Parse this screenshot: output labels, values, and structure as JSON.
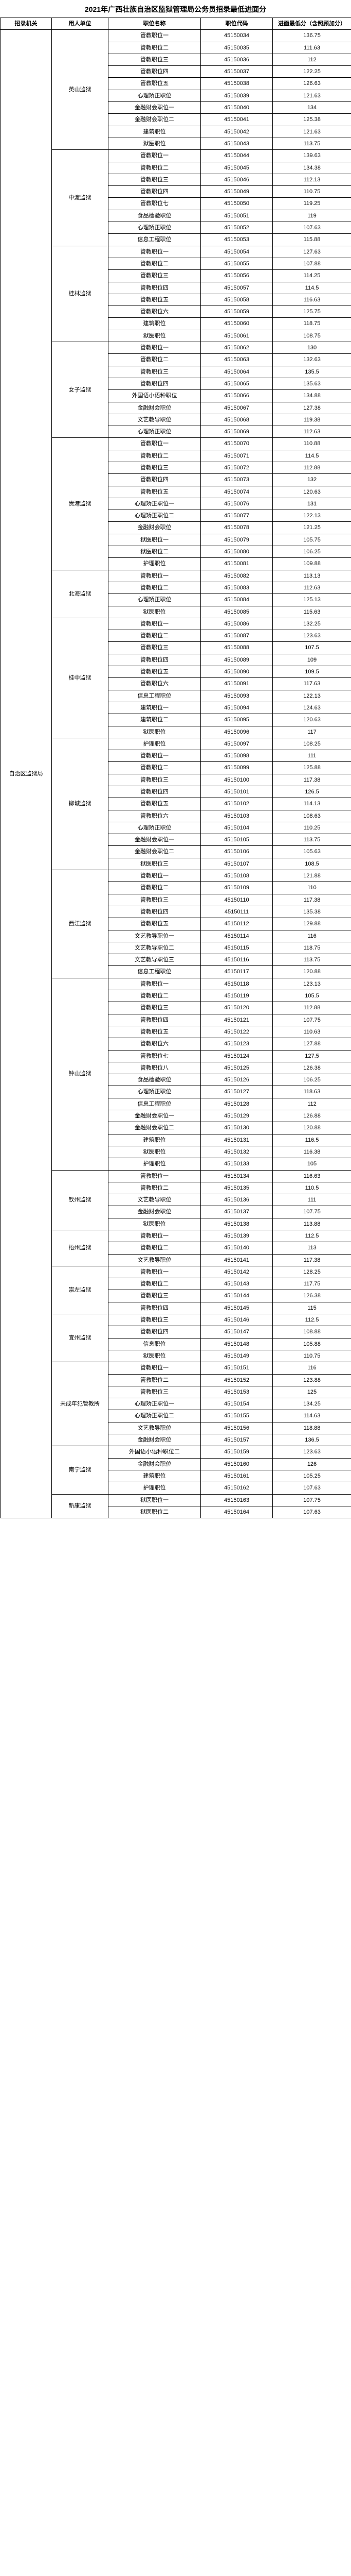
{
  "title": "2021年广西壮族自治区监狱管理局公务员招录最低进面分",
  "headers": [
    "招录机关",
    "用人单位",
    "职位名称",
    "职位代码",
    "进面最低分（含照顾加分）"
  ],
  "org": "自治区监狱局",
  "units": [
    {
      "name": "英山监狱",
      "rows": [
        {
          "pos": "管教职位一",
          "code": "45150034",
          "score": "136.75"
        },
        {
          "pos": "管教职位二",
          "code": "45150035",
          "score": "111.63"
        },
        {
          "pos": "管教职位三",
          "code": "45150036",
          "score": "112"
        },
        {
          "pos": "管教职位四",
          "code": "45150037",
          "score": "122.25"
        },
        {
          "pos": "管教职位五",
          "code": "45150038",
          "score": "126.63"
        },
        {
          "pos": "心理矫正职位",
          "code": "45150039",
          "score": "121.63"
        },
        {
          "pos": "金融财会职位一",
          "code": "45150040",
          "score": "134"
        },
        {
          "pos": "金融财会职位二",
          "code": "45150041",
          "score": "125.38"
        },
        {
          "pos": "建筑职位",
          "code": "45150042",
          "score": "121.63"
        },
        {
          "pos": "狱医职位",
          "code": "45150043",
          "score": "113.75"
        }
      ]
    },
    {
      "name": "中渡监狱",
      "rows": [
        {
          "pos": "管教职位一",
          "code": "45150044",
          "score": "139.63"
        },
        {
          "pos": "管教职位二",
          "code": "45150045",
          "score": "134.38"
        },
        {
          "pos": "管教职位三",
          "code": "45150046",
          "score": "112.13"
        },
        {
          "pos": "管教职位四",
          "code": "45150049",
          "score": "110.75"
        },
        {
          "pos": "管教职位七",
          "code": "45150050",
          "score": "119.25"
        },
        {
          "pos": "食品检验职位",
          "code": "45150051",
          "score": "119"
        },
        {
          "pos": "心理矫正职位",
          "code": "45150052",
          "score": "107.63"
        },
        {
          "pos": "信息工程职位",
          "code": "45150053",
          "score": "115.88"
        }
      ]
    },
    {
      "name": "桂林监狱",
      "rows": [
        {
          "pos": "管教职位一",
          "code": "45150054",
          "score": "127.63"
        },
        {
          "pos": "管教职位二",
          "code": "45150055",
          "score": "107.88"
        },
        {
          "pos": "管教职位三",
          "code": "45150056",
          "score": "114.25"
        },
        {
          "pos": "管教职位四",
          "code": "45150057",
          "score": "114.5"
        },
        {
          "pos": "管教职位五",
          "code": "45150058",
          "score": "116.63"
        },
        {
          "pos": "管教职位六",
          "code": "45150059",
          "score": "125.75"
        },
        {
          "pos": "建筑职位",
          "code": "45150060",
          "score": "118.75"
        },
        {
          "pos": "狱医职位",
          "code": "45150061",
          "score": "108.75"
        }
      ]
    },
    {
      "name": "女子监狱",
      "rows": [
        {
          "pos": "管教职位一",
          "code": "45150062",
          "score": "130"
        },
        {
          "pos": "管教职位二",
          "code": "45150063",
          "score": "132.63"
        },
        {
          "pos": "管教职位三",
          "code": "45150064",
          "score": "135.5"
        },
        {
          "pos": "管教职位四",
          "code": "45150065",
          "score": "135.63"
        },
        {
          "pos": "外国语小语种职位",
          "code": "45150066",
          "score": "134.88"
        },
        {
          "pos": "金融财会职位",
          "code": "45150067",
          "score": "127.38"
        },
        {
          "pos": "文艺教导职位",
          "code": "45150068",
          "score": "119.38"
        },
        {
          "pos": "心理矫正职位",
          "code": "45150069",
          "score": "112.63"
        }
      ]
    },
    {
      "name": "贵港监狱",
      "rows": [
        {
          "pos": "管教职位一",
          "code": "45150070",
          "score": "110.88"
        },
        {
          "pos": "管教职位二",
          "code": "45150071",
          "score": "114.5"
        },
        {
          "pos": "管教职位三",
          "code": "45150072",
          "score": "112.88"
        },
        {
          "pos": "管教职位四",
          "code": "45150073",
          "score": "132"
        },
        {
          "pos": "管教职位五",
          "code": "45150074",
          "score": "120.63"
        },
        {
          "pos": "心理矫正职位一",
          "code": "45150076",
          "score": "131"
        },
        {
          "pos": "心理矫正职位二",
          "code": "45150077",
          "score": "122.13"
        },
        {
          "pos": "金融财会职位",
          "code": "45150078",
          "score": "121.25"
        },
        {
          "pos": "狱医职位一",
          "code": "45150079",
          "score": "105.75"
        },
        {
          "pos": "狱医职位二",
          "code": "45150080",
          "score": "106.25"
        },
        {
          "pos": "护理职位",
          "code": "45150081",
          "score": "109.88"
        }
      ]
    },
    {
      "name": "北海监狱",
      "rows": [
        {
          "pos": "管教职位一",
          "code": "45150082",
          "score": "113.13"
        },
        {
          "pos": "管教职位二",
          "code": "45150083",
          "score": "112.63"
        },
        {
          "pos": "心理矫正职位",
          "code": "45150084",
          "score": "125.13"
        },
        {
          "pos": "狱医职位",
          "code": "45150085",
          "score": "115.63"
        }
      ]
    },
    {
      "name": "桂中监狱",
      "rows": [
        {
          "pos": "管教职位一",
          "code": "45150086",
          "score": "132.25"
        },
        {
          "pos": "管教职位二",
          "code": "45150087",
          "score": "123.63"
        },
        {
          "pos": "管教职位三",
          "code": "45150088",
          "score": "107.5"
        },
        {
          "pos": "管教职位四",
          "code": "45150089",
          "score": "109"
        },
        {
          "pos": "管教职位五",
          "code": "45150090",
          "score": "109.5"
        },
        {
          "pos": "管教职位六",
          "code": "45150091",
          "score": "117.63"
        },
        {
          "pos": "信息工程职位",
          "code": "45150093",
          "score": "122.13"
        },
        {
          "pos": "建筑职位一",
          "code": "45150094",
          "score": "124.63"
        },
        {
          "pos": "建筑职位二",
          "code": "45150095",
          "score": "120.63"
        },
        {
          "pos": "狱医职位",
          "code": "45150096",
          "score": "117"
        }
      ]
    },
    {
      "name": "柳城监狱",
      "rows": [
        {
          "pos": "护理职位",
          "code": "45150097",
          "score": "108.25"
        },
        {
          "pos": "管教职位一",
          "code": "45150098",
          "score": "111"
        },
        {
          "pos": "管教职位二",
          "code": "45150099",
          "score": "125.88"
        },
        {
          "pos": "管教职位三",
          "code": "45150100",
          "score": "117.38"
        },
        {
          "pos": "管教职位四",
          "code": "45150101",
          "score": "126.5"
        },
        {
          "pos": "管教职位五",
          "code": "45150102",
          "score": "114.13"
        },
        {
          "pos": "管教职位六",
          "code": "45150103",
          "score": "108.63"
        },
        {
          "pos": "心理矫正职位",
          "code": "45150104",
          "score": "110.25"
        },
        {
          "pos": "金融财会职位一",
          "code": "45150105",
          "score": "113.75"
        },
        {
          "pos": "金融财会职位二",
          "code": "45150106",
          "score": "105.63"
        },
        {
          "pos": "狱医职位三",
          "code": "45150107",
          "score": "108.5"
        }
      ]
    },
    {
      "name": "西江监狱",
      "rows": [
        {
          "pos": "管教职位一",
          "code": "45150108",
          "score": "121.88"
        },
        {
          "pos": "管教职位二",
          "code": "45150109",
          "score": "110"
        },
        {
          "pos": "管教职位三",
          "code": "45150110",
          "score": "117.38"
        },
        {
          "pos": "管教职位四",
          "code": "45150111",
          "score": "135.38"
        },
        {
          "pos": "管教职位五",
          "code": "45150112",
          "score": "129.88"
        },
        {
          "pos": "文艺教导职位一",
          "code": "45150114",
          "score": "116"
        },
        {
          "pos": "文艺教导职位二",
          "code": "45150115",
          "score": "118.75"
        },
        {
          "pos": "文艺教导职位三",
          "code": "45150116",
          "score": "113.75"
        },
        {
          "pos": "信息工程职位",
          "code": "45150117",
          "score": "120.88"
        }
      ]
    },
    {
      "name": "钟山监狱",
      "rows": [
        {
          "pos": "管教职位一",
          "code": "45150118",
          "score": "123.13"
        },
        {
          "pos": "管教职位二",
          "code": "45150119",
          "score": "105.5"
        },
        {
          "pos": "管教职位三",
          "code": "45150120",
          "score": "112.88"
        },
        {
          "pos": "管教职位四",
          "code": "45150121",
          "score": "107.75"
        },
        {
          "pos": "管教职位五",
          "code": "45150122",
          "score": "110.63"
        },
        {
          "pos": "管教职位六",
          "code": "45150123",
          "score": "127.88"
        },
        {
          "pos": "管教职位七",
          "code": "45150124",
          "score": "127.5"
        },
        {
          "pos": "管教职位八",
          "code": "45150125",
          "score": "126.38"
        },
        {
          "pos": "食品检验职位",
          "code": "45150126",
          "score": "106.25"
        },
        {
          "pos": "心理矫正职位",
          "code": "45150127",
          "score": "118.63"
        },
        {
          "pos": "信息工程职位",
          "code": "45150128",
          "score": "112"
        },
        {
          "pos": "金融财会职位一",
          "code": "45150129",
          "score": "126.88"
        },
        {
          "pos": "金融财会职位二",
          "code": "45150130",
          "score": "120.88"
        },
        {
          "pos": "建筑职位",
          "code": "45150131",
          "score": "116.5"
        },
        {
          "pos": "狱医职位",
          "code": "45150132",
          "score": "116.38"
        },
        {
          "pos": "护理职位",
          "code": "45150133",
          "score": "105"
        }
      ]
    },
    {
      "name": "钦州监狱",
      "rows": [
        {
          "pos": "管教职位一",
          "code": "45150134",
          "score": "116.63"
        },
        {
          "pos": "管教职位二",
          "code": "45150135",
          "score": "110.5"
        },
        {
          "pos": "文艺教导职位",
          "code": "45150136",
          "score": "111"
        },
        {
          "pos": "金融财会职位",
          "code": "45150137",
          "score": "107.75"
        },
        {
          "pos": "狱医职位",
          "code": "45150138",
          "score": "113.88"
        }
      ]
    },
    {
      "name": "梧州监狱",
      "rows": [
        {
          "pos": "管教职位一",
          "code": "45150139",
          "score": "112.5"
        },
        {
          "pos": "管教职位二",
          "code": "45150140",
          "score": "113"
        },
        {
          "pos": "文艺教导职位",
          "code": "45150141",
          "score": "117.38"
        }
      ]
    },
    {
      "name": "崇左监狱",
      "rows": [
        {
          "pos": "管教职位一",
          "code": "45150142",
          "score": "128.25"
        },
        {
          "pos": "管教职位二",
          "code": "45150143",
          "score": "117.75"
        },
        {
          "pos": "管教职位三",
          "code": "45150144",
          "score": "126.38"
        },
        {
          "pos": "管教职位四",
          "code": "45150145",
          "score": "115"
        }
      ]
    },
    {
      "name": "宜州监狱",
      "rows": [
        {
          "pos": "管教职位三",
          "code": "45150146",
          "score": "112.5"
        },
        {
          "pos": "管教职位四",
          "code": "45150147",
          "score": "108.88"
        },
        {
          "pos": "信息职位",
          "code": "45150148",
          "score": "105.88"
        },
        {
          "pos": "狱医职位",
          "code": "45150149",
          "score": "110.75"
        }
      ]
    },
    {
      "name": "未成年犯管教所",
      "rows": [
        {
          "pos": "管教职位一",
          "code": "45150151",
          "score": "116"
        },
        {
          "pos": "管教职位二",
          "code": "45150152",
          "score": "123.88"
        },
        {
          "pos": "管教职位三",
          "code": "45150153",
          "score": "125"
        },
        {
          "pos": "心理矫正职位一",
          "code": "45150154",
          "score": "134.25"
        },
        {
          "pos": "心理矫正职位二",
          "code": "45150155",
          "score": "114.63"
        },
        {
          "pos": "文艺教导职位",
          "code": "45150156",
          "score": "118.88"
        },
        {
          "pos": "金融财会职位",
          "code": "45150157",
          "score": "136.5"
        }
      ]
    },
    {
      "name": "南宁监狱",
      "rows": [
        {
          "pos": "外国语小语种职位二",
          "code": "45150159",
          "score": "123.63"
        },
        {
          "pos": "金融财会职位",
          "code": "45150160",
          "score": "126"
        },
        {
          "pos": "建筑职位",
          "code": "45150161",
          "score": "105.25"
        },
        {
          "pos": "护理职位",
          "code": "45150162",
          "score": "107.63"
        }
      ]
    },
    {
      "name": "新康监狱",
      "rows": [
        {
          "pos": "狱医职位一",
          "code": "45150163",
          "score": "107.75"
        },
        {
          "pos": "狱医职位二",
          "code": "45150164",
          "score": "107.63"
        }
      ]
    }
  ]
}
